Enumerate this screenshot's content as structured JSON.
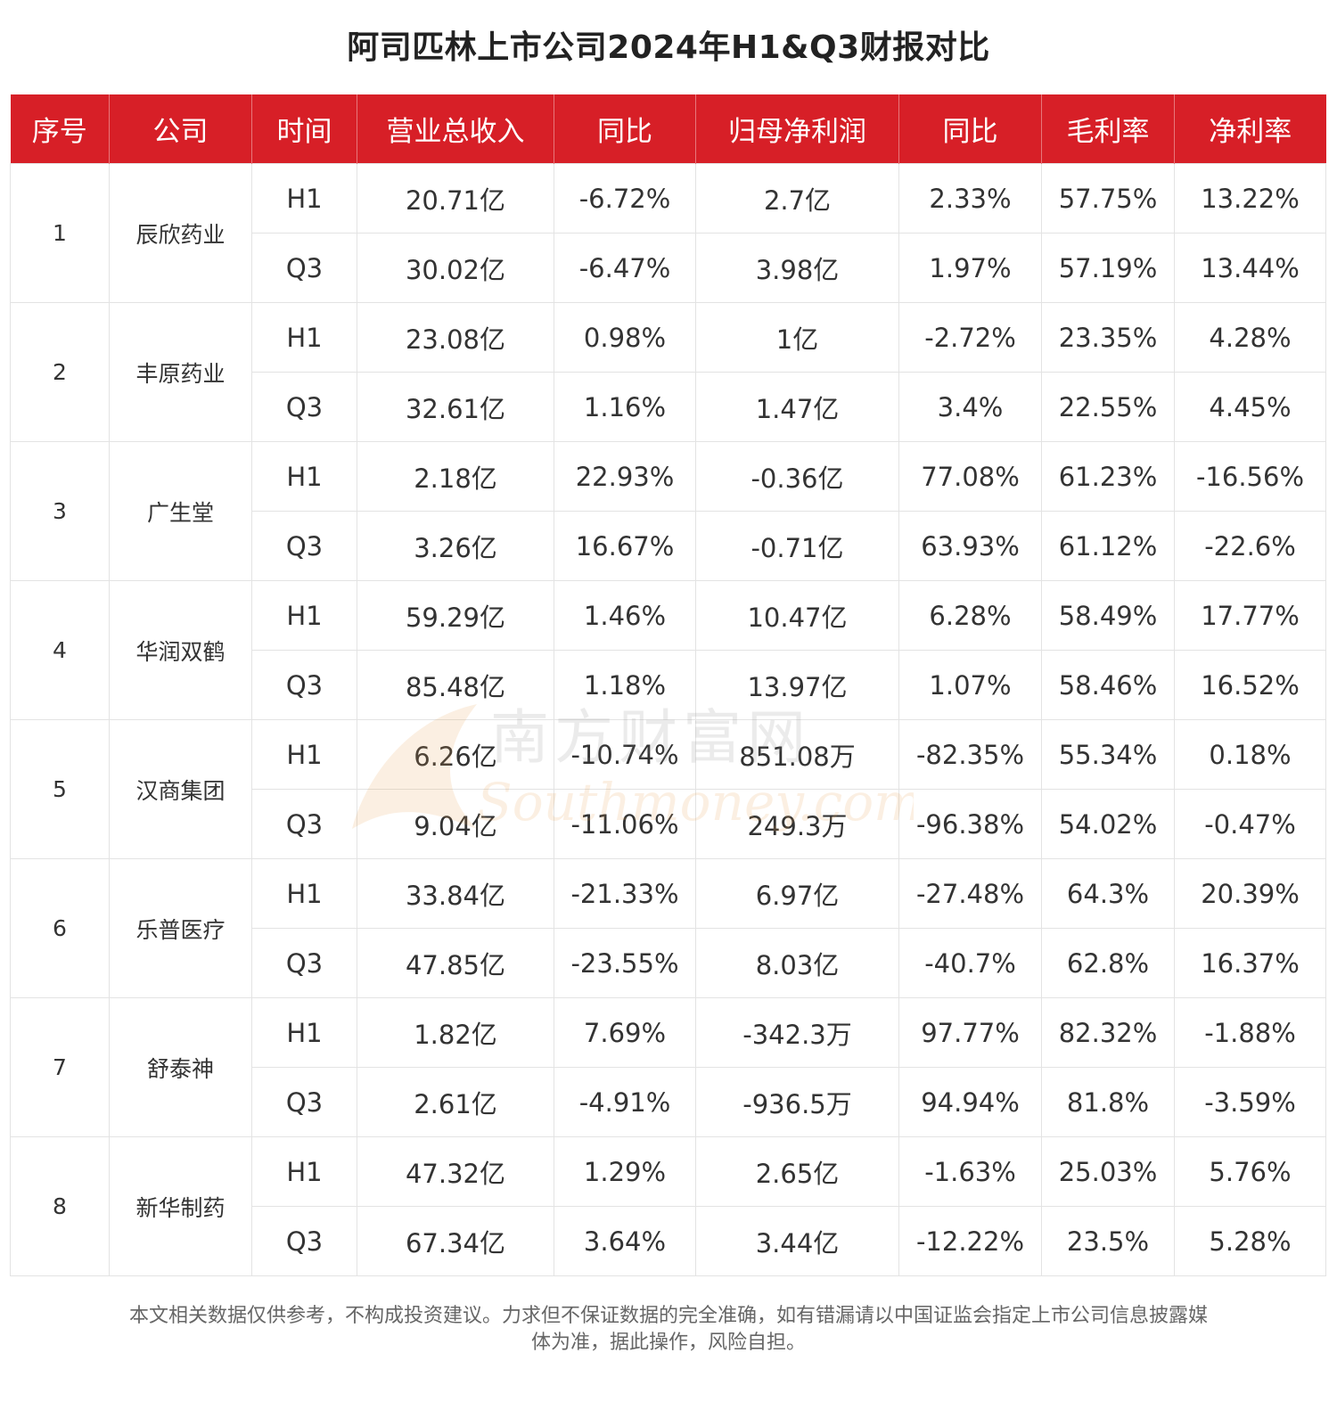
{
  "title": "阿司匹林上市公司2024年H1&Q3财报对比",
  "header": [
    "序号",
    "公司",
    "时间",
    "营业总收入",
    "同比",
    "归母净利润",
    "同比",
    "毛利率",
    "净利率"
  ],
  "companies": [
    {
      "index": "1",
      "name": "辰欣药业",
      "rows": [
        {
          "period": "H1",
          "revenue": "20.71亿",
          "revenue_yoy": "-6.72%",
          "net_profit": "2.7亿",
          "profit_yoy": "2.33%",
          "gross_margin": "57.75%",
          "net_margin": "13.22%"
        },
        {
          "period": "Q3",
          "revenue": "30.02亿",
          "revenue_yoy": "-6.47%",
          "net_profit": "3.98亿",
          "profit_yoy": "1.97%",
          "gross_margin": "57.19%",
          "net_margin": "13.44%"
        }
      ]
    },
    {
      "index": "2",
      "name": "丰原药业",
      "rows": [
        {
          "period": "H1",
          "revenue": "23.08亿",
          "revenue_yoy": "0.98%",
          "net_profit": "1亿",
          "profit_yoy": "-2.72%",
          "gross_margin": "23.35%",
          "net_margin": "4.28%"
        },
        {
          "period": "Q3",
          "revenue": "32.61亿",
          "revenue_yoy": "1.16%",
          "net_profit": "1.47亿",
          "profit_yoy": "3.4%",
          "gross_margin": "22.55%",
          "net_margin": "4.45%"
        }
      ]
    },
    {
      "index": "3",
      "name": "广生堂",
      "rows": [
        {
          "period": "H1",
          "revenue": "2.18亿",
          "revenue_yoy": "22.93%",
          "net_profit": "-0.36亿",
          "profit_yoy": "77.08%",
          "gross_margin": "61.23%",
          "net_margin": "-16.56%"
        },
        {
          "period": "Q3",
          "revenue": "3.26亿",
          "revenue_yoy": "16.67%",
          "net_profit": "-0.71亿",
          "profit_yoy": "63.93%",
          "gross_margin": "61.12%",
          "net_margin": "-22.6%"
        }
      ]
    },
    {
      "index": "4",
      "name": "华润双鹤",
      "rows": [
        {
          "period": "H1",
          "revenue": "59.29亿",
          "revenue_yoy": "1.46%",
          "net_profit": "10.47亿",
          "profit_yoy": "6.28%",
          "gross_margin": "58.49%",
          "net_margin": "17.77%"
        },
        {
          "period": "Q3",
          "revenue": "85.48亿",
          "revenue_yoy": "1.18%",
          "net_profit": "13.97亿",
          "profit_yoy": "1.07%",
          "gross_margin": "58.46%",
          "net_margin": "16.52%"
        }
      ]
    },
    {
      "index": "5",
      "name": "汉商集团",
      "rows": [
        {
          "period": "H1",
          "revenue": "6.26亿",
          "revenue_yoy": "-10.74%",
          "net_profit": "851.08万",
          "profit_yoy": "-82.35%",
          "gross_margin": "55.34%",
          "net_margin": "0.18%"
        },
        {
          "period": "Q3",
          "revenue": "9.04亿",
          "revenue_yoy": "-11.06%",
          "net_profit": "249.3万",
          "profit_yoy": "-96.38%",
          "gross_margin": "54.02%",
          "net_margin": "-0.47%"
        }
      ]
    },
    {
      "index": "6",
      "name": "乐普医疗",
      "rows": [
        {
          "period": "H1",
          "revenue": "33.84亿",
          "revenue_yoy": "-21.33%",
          "net_profit": "6.97亿",
          "profit_yoy": "-27.48%",
          "gross_margin": "64.3%",
          "net_margin": "20.39%"
        },
        {
          "period": "Q3",
          "revenue": "47.85亿",
          "revenue_yoy": "-23.55%",
          "net_profit": "8.03亿",
          "profit_yoy": "-40.7%",
          "gross_margin": "62.8%",
          "net_margin": "16.37%"
        }
      ]
    },
    {
      "index": "7",
      "name": "舒泰神",
      "rows": [
        {
          "period": "H1",
          "revenue": "1.82亿",
          "revenue_yoy": "7.69%",
          "net_profit": "-342.3万",
          "profit_yoy": "97.77%",
          "gross_margin": "82.32%",
          "net_margin": "-1.88%"
        },
        {
          "period": "Q3",
          "revenue": "2.61亿",
          "revenue_yoy": "-4.91%",
          "net_profit": "-936.5万",
          "profit_yoy": "94.94%",
          "gross_margin": "81.8%",
          "net_margin": "-3.59%"
        }
      ]
    },
    {
      "index": "8",
      "name": "新华制药",
      "rows": [
        {
          "period": "H1",
          "revenue": "47.32亿",
          "revenue_yoy": "1.29%",
          "net_profit": "2.65亿",
          "profit_yoy": "-1.63%",
          "gross_margin": "25.03%",
          "net_margin": "5.76%"
        },
        {
          "period": "Q3",
          "revenue": "67.34亿",
          "revenue_yoy": "3.64%",
          "net_profit": "3.44亿",
          "profit_yoy": "-12.22%",
          "gross_margin": "23.5%",
          "net_margin": "5.28%"
        }
      ]
    }
  ],
  "watermark": {
    "cn": "南方财富网",
    "en": "Southmoney.com",
    "color_cn": "#888888",
    "color_en": "#e8a050"
  },
  "footer": {
    "line1": "本文相关数据仅供参考，不构成投资建议。力求但不保证数据的完全准确，如有错漏请以中国证监会指定上市公司信息披露媒",
    "line2": "体为准，据此操作，风险自担。"
  },
  "colors": {
    "header_bg": "#d71f27",
    "header_text": "#ffffff",
    "grid": "#e3e3e3"
  }
}
